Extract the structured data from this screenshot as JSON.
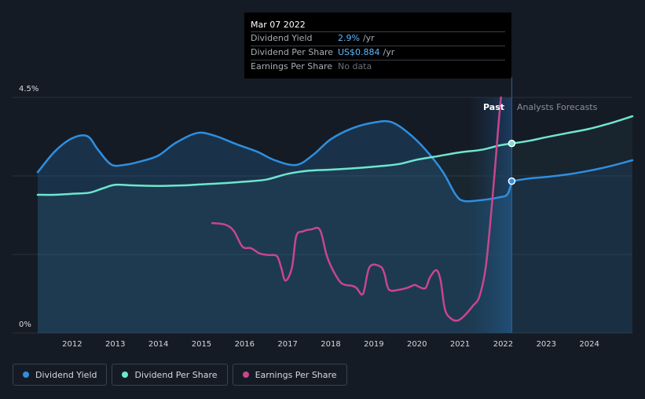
{
  "tooltip": {
    "date": "Mar 07 2022",
    "rows": [
      {
        "label": "Dividend Yield",
        "value": "2.9%",
        "unit": "/yr"
      },
      {
        "label": "Dividend Per Share",
        "value": "US$0.884",
        "unit": "/yr"
      },
      {
        "label": "Earnings Per Share",
        "value": "No data",
        "unit": ""
      }
    ]
  },
  "labels": {
    "past": "Past",
    "forecast": "Analysts Forecasts"
  },
  "legend": [
    {
      "label": "Dividend Yield",
      "color": "#2e8fe0"
    },
    {
      "label": "Dividend Per Share",
      "color": "#6ee6d0"
    },
    {
      "label": "Earnings Per Share",
      "color": "#c8468c"
    }
  ],
  "chart_data": {
    "type": "line",
    "x_ticks": [
      "2012",
      "2013",
      "2014",
      "2015",
      "2016",
      "2017",
      "2018",
      "2019",
      "2020",
      "2021",
      "2022",
      "2023",
      "2024"
    ],
    "y_ticks": [
      "0%",
      "4.5%"
    ],
    "ylim": [
      0,
      4.5
    ],
    "xlim": [
      2011.2,
      2025.0
    ],
    "past_end": 2022.2,
    "series": [
      {
        "name": "Dividend Yield",
        "color": "#2e8fe0",
        "points": [
          [
            2011.2,
            3.07
          ],
          [
            2011.6,
            3.47
          ],
          [
            2012.0,
            3.72
          ],
          [
            2012.35,
            3.76
          ],
          [
            2012.6,
            3.5
          ],
          [
            2012.9,
            3.22
          ],
          [
            2013.2,
            3.21
          ],
          [
            2013.6,
            3.28
          ],
          [
            2014.0,
            3.39
          ],
          [
            2014.4,
            3.63
          ],
          [
            2014.9,
            3.82
          ],
          [
            2015.3,
            3.77
          ],
          [
            2015.8,
            3.61
          ],
          [
            2016.3,
            3.46
          ],
          [
            2016.7,
            3.3
          ],
          [
            2017.2,
            3.21
          ],
          [
            2017.6,
            3.41
          ],
          [
            2018.0,
            3.7
          ],
          [
            2018.5,
            3.91
          ],
          [
            2019.0,
            4.02
          ],
          [
            2019.4,
            4.03
          ],
          [
            2019.8,
            3.82
          ],
          [
            2020.2,
            3.5
          ],
          [
            2020.6,
            3.08
          ],
          [
            2020.9,
            2.64
          ],
          [
            2021.1,
            2.52
          ],
          [
            2021.5,
            2.54
          ],
          [
            2021.9,
            2.59
          ],
          [
            2022.1,
            2.65
          ],
          [
            2022.2,
            2.9
          ]
        ]
      },
      {
        "name": "Dividend Yield Forecast",
        "color": "#2e8fe0",
        "points": [
          [
            2022.2,
            2.9
          ],
          [
            2022.6,
            2.95
          ],
          [
            2023.0,
            2.98
          ],
          [
            2023.5,
            3.03
          ],
          [
            2024.0,
            3.1
          ],
          [
            2024.5,
            3.19
          ],
          [
            2025.0,
            3.3
          ]
        ]
      },
      {
        "name": "Dividend Per Share",
        "color": "#6ee6d0",
        "points": [
          [
            2011.2,
            2.64
          ],
          [
            2011.6,
            2.64
          ],
          [
            2012.0,
            2.66
          ],
          [
            2012.4,
            2.68
          ],
          [
            2012.7,
            2.76
          ],
          [
            2013.0,
            2.83
          ],
          [
            2013.4,
            2.82
          ],
          [
            2014.0,
            2.81
          ],
          [
            2014.6,
            2.82
          ],
          [
            2015.0,
            2.84
          ],
          [
            2015.5,
            2.86
          ],
          [
            2016.0,
            2.89
          ],
          [
            2016.5,
            2.93
          ],
          [
            2017.0,
            3.04
          ],
          [
            2017.5,
            3.1
          ],
          [
            2018.0,
            3.12
          ],
          [
            2018.6,
            3.15
          ],
          [
            2019.2,
            3.19
          ],
          [
            2019.6,
            3.23
          ],
          [
            2020.0,
            3.31
          ],
          [
            2020.5,
            3.38
          ],
          [
            2021.0,
            3.45
          ],
          [
            2021.5,
            3.5
          ],
          [
            2021.9,
            3.58
          ],
          [
            2022.2,
            3.62
          ]
        ]
      },
      {
        "name": "Dividend Per Share Forecast",
        "color": "#6ee6d0",
        "points": [
          [
            2022.2,
            3.62
          ],
          [
            2022.6,
            3.67
          ],
          [
            2023.0,
            3.74
          ],
          [
            2023.5,
            3.82
          ],
          [
            2024.0,
            3.9
          ],
          [
            2024.5,
            4.01
          ],
          [
            2025.0,
            4.14
          ]
        ]
      },
      {
        "name": "Earnings Per Share",
        "color": "#c8468c",
        "points": [
          [
            2015.25,
            2.1
          ],
          [
            2015.55,
            2.07
          ],
          [
            2015.75,
            1.95
          ],
          [
            2015.95,
            1.65
          ],
          [
            2016.15,
            1.62
          ],
          [
            2016.35,
            1.52
          ],
          [
            2016.55,
            1.49
          ],
          [
            2016.75,
            1.47
          ],
          [
            2016.85,
            1.25
          ],
          [
            2016.95,
            1.0
          ],
          [
            2017.1,
            1.25
          ],
          [
            2017.2,
            1.85
          ],
          [
            2017.35,
            1.94
          ],
          [
            2017.55,
            1.98
          ],
          [
            2017.75,
            1.97
          ],
          [
            2017.9,
            1.5
          ],
          [
            2018.05,
            1.2
          ],
          [
            2018.25,
            0.95
          ],
          [
            2018.5,
            0.9
          ],
          [
            2018.6,
            0.86
          ],
          [
            2018.75,
            0.75
          ],
          [
            2018.9,
            1.26
          ],
          [
            2019.15,
            1.27
          ],
          [
            2019.25,
            1.12
          ],
          [
            2019.35,
            0.83
          ],
          [
            2019.6,
            0.83
          ],
          [
            2019.8,
            0.87
          ],
          [
            2019.95,
            0.92
          ],
          [
            2020.05,
            0.88
          ],
          [
            2020.2,
            0.86
          ],
          [
            2020.3,
            1.06
          ],
          [
            2020.45,
            1.2
          ],
          [
            2020.55,
            1.0
          ],
          [
            2020.65,
            0.45
          ],
          [
            2020.8,
            0.27
          ],
          [
            2020.95,
            0.24
          ],
          [
            2021.1,
            0.33
          ],
          [
            2021.3,
            0.52
          ],
          [
            2021.45,
            0.7
          ],
          [
            2021.6,
            1.28
          ],
          [
            2021.75,
            2.55
          ],
          [
            2021.9,
            4.05
          ],
          [
            2021.95,
            4.5
          ]
        ]
      }
    ],
    "markers": [
      {
        "x": 2022.2,
        "y": 2.9,
        "color": "#2e8fe0"
      },
      {
        "x": 2022.2,
        "y": 3.62,
        "color": "#6ee6d0"
      }
    ]
  }
}
